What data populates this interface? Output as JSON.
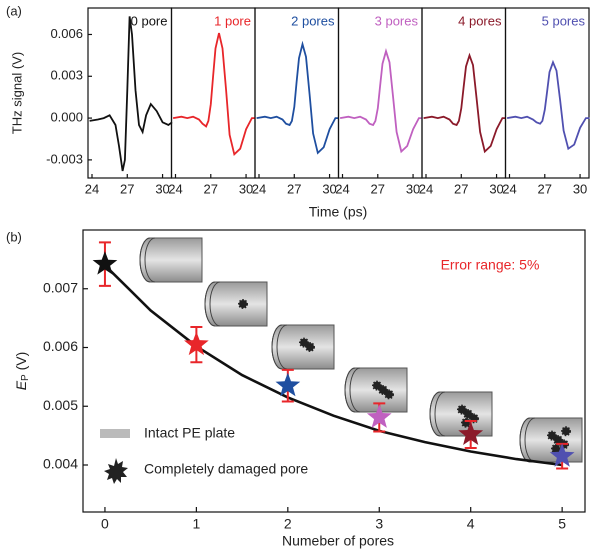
{
  "chart_data": [
    {
      "type": "line",
      "panel_label": "(a)",
      "y_label": "THz signal (V)",
      "x_label": "Time (ps)",
      "xlim": [
        23.66,
        30.76
      ],
      "xticks": [
        24,
        27,
        30
      ],
      "ylim": [
        -0.0043,
        0.0079
      ],
      "yticks": [
        -0.003,
        {
          "value": 0,
          "label": "0.000"
        },
        0.003,
        0.006
      ],
      "x": [
        23.8,
        24.5,
        25,
        25.5,
        26,
        26.3,
        26.6,
        26.8,
        27,
        27.2,
        27.4,
        27.7,
        28,
        28.3,
        28.6,
        29,
        29.5,
        30,
        30.5,
        30.8
      ],
      "series": [
        {
          "name": "0 pore",
          "color": "#111111",
          "values": [
            -0.0002,
            -0.0001,
            0,
            0.0002,
            -0.0005,
            -0.002,
            -0.0038,
            -0.003,
            0.002,
            0.0073,
            0.006,
            0.002,
            -0.0005,
            -0.001,
            0.0002,
            0.001,
            0.0005,
            -0.0003,
            -0.0005,
            -0.0003
          ]
        },
        {
          "name": "1 pore",
          "color": "#e8262a",
          "values": [
            0,
            0.0001,
            0,
            0.0001,
            -0.0001,
            -0.0004,
            -0.0006,
            -0.0002,
            0.001,
            0.003,
            0.005,
            0.0061,
            0.005,
            0.002,
            -0.0012,
            -0.0026,
            -0.0022,
            -0.0008,
            0,
            0
          ]
        },
        {
          "name": "2 pores",
          "color": "#1f4fa0",
          "values": [
            0,
            0.0001,
            0,
            0.0001,
            -0.0001,
            -0.0004,
            -0.0005,
            -0.0002,
            0.0008,
            0.0026,
            0.0043,
            0.0053,
            0.0044,
            0.0017,
            -0.0011,
            -0.0025,
            -0.0021,
            -0.0008,
            0,
            0
          ]
        },
        {
          "name": "3 pores",
          "color": "#c060c0",
          "values": [
            0,
            0.0001,
            0,
            0.0001,
            -0.0001,
            -0.0004,
            -0.0005,
            -0.0002,
            0.0007,
            0.0023,
            0.0039,
            0.0048,
            0.004,
            0.0015,
            -0.001,
            -0.0024,
            -0.002,
            -0.0008,
            0,
            0
          ]
        },
        {
          "name": "4 pores",
          "color": "#8b1a2a",
          "values": [
            0,
            0.0001,
            0,
            0.0001,
            -0.0001,
            -0.0004,
            -0.0005,
            -0.0002,
            0.0007,
            0.0022,
            0.0037,
            0.0045,
            0.0038,
            0.0014,
            -0.001,
            -0.0024,
            -0.002,
            -0.0008,
            0,
            0
          ]
        },
        {
          "name": "5 pores",
          "color": "#5050b0",
          "values": [
            0,
            0.0001,
            0,
            0.0001,
            -0.0001,
            -0.0003,
            -0.0004,
            -0.0002,
            0.0006,
            0.0019,
            0.0033,
            0.004,
            0.0034,
            0.0013,
            -0.0009,
            -0.0022,
            -0.0019,
            -0.0007,
            0,
            0
          ]
        }
      ]
    },
    {
      "type": "scatter",
      "panel_label": "(b)",
      "y_label": {
        "symbol": "E",
        "subscript": "P",
        "unit": " (V)"
      },
      "x_label": "Numeber of pores",
      "xlim": [
        -0.24,
        5.25
      ],
      "xticks": [
        0,
        1,
        2,
        3,
        4,
        5
      ],
      "ylim": [
        0.0032,
        0.008
      ],
      "yticks": [
        0.004,
        0.005,
        0.006,
        0.007
      ],
      "x": [
        0,
        1,
        2,
        3,
        4,
        5
      ],
      "values": [
        0.00742,
        0.00605,
        0.00535,
        0.00481,
        0.00452,
        0.00415
      ],
      "errors": [
        0.00037,
        0.0003,
        0.00027,
        0.00024,
        0.00023,
        0.00021
      ],
      "colors": [
        "#111111",
        "#e8262a",
        "#1f4fa0",
        "#c060c0",
        "#8b1a2a",
        "#5050b0"
      ],
      "error_color": "#e8262a",
      "fit": {
        "x": [
          0,
          0.5,
          1,
          1.5,
          2,
          2.5,
          3,
          3.5,
          4,
          4.5,
          5
        ],
        "values": [
          0.0074,
          0.00663,
          0.00602,
          0.00553,
          0.00515,
          0.00484,
          0.00458,
          0.00439,
          0.00423,
          0.0041,
          0.004
        ]
      },
      "annotation": "Error range: 5%",
      "legend": [
        "Intact PE plate",
        "Completely damaged pore"
      ]
    }
  ]
}
